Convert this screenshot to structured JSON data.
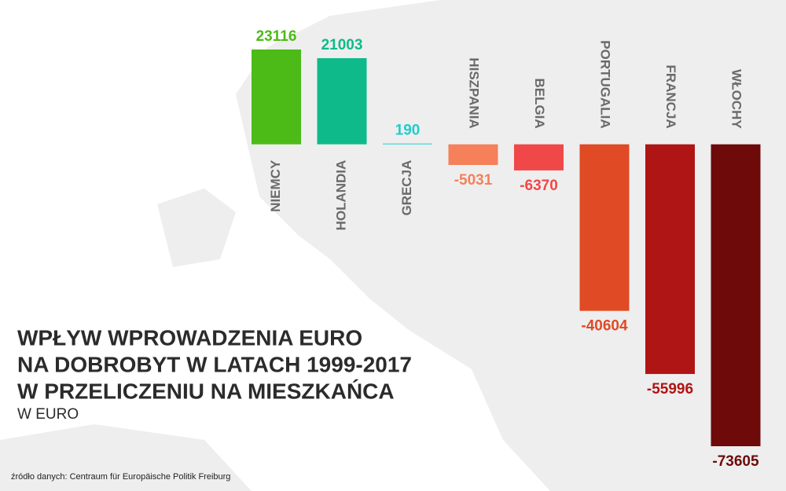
{
  "chart_data": {
    "type": "bar",
    "title": [
      "WPŁYW WPROWADZENIA EURO",
      "NA DOBROBYT W LATACH 1999-2017",
      "W PRZELICZENIU NA MIESZKAŃCA"
    ],
    "subtitle": "W EURO",
    "source": "źródło danych: Centraum für Europäische Politik Freiburg",
    "categories": [
      "NIEMCY",
      "HOLANDIA",
      "GRECJA",
      "HISZPANIA",
      "BELGIA",
      "PORTUGALIA",
      "FRANCJA",
      "WŁOCHY"
    ],
    "values": [
      23116,
      21003,
      190,
      -5031,
      -6370,
      -40604,
      -55996,
      -73605
    ],
    "colors": [
      "#4cbb17",
      "#0fba8a",
      "#22cccc",
      "#f5805a",
      "#f04848",
      "#e04a25",
      "#b01515",
      "#6e0a0a"
    ]
  }
}
